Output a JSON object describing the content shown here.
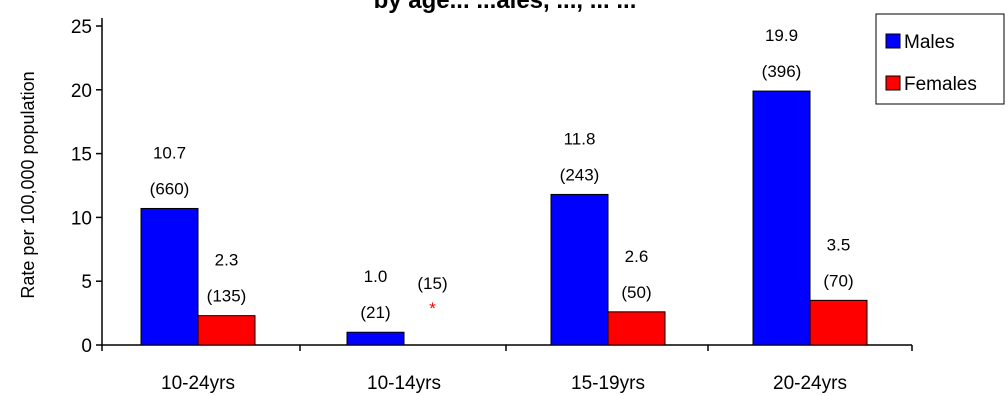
{
  "chart_data": {
    "type": "bar",
    "title": "by age... ...ales, ..., ... ...",
    "ylabel": "Rate per 100,000 population",
    "xlabel": "",
    "ylim": [
      0,
      25
    ],
    "yticks": [
      0,
      5,
      10,
      15,
      20,
      25
    ],
    "categories": [
      "10-24yrs",
      "10-14yrs",
      "15-19yrs",
      "20-24yrs"
    ],
    "series": [
      {
        "name": "Males",
        "color": "#0000ff",
        "values": [
          10.7,
          1.0,
          11.8,
          19.9
        ],
        "rate_labels": [
          "10.7",
          "1.0",
          "11.8",
          "19.9"
        ],
        "count_labels": [
          "(660)",
          "(21)",
          "(243)",
          "(396)"
        ]
      },
      {
        "name": "Females",
        "color": "#ff0000",
        "values": [
          2.3,
          null,
          2.6,
          3.5
        ],
        "rate_labels": [
          "2.3",
          "",
          "2.6",
          "3.5"
        ],
        "count_labels": [
          "(135)",
          "(15)",
          "(50)",
          "(70)"
        ]
      }
    ],
    "footnote_marks": [
      "",
      "*",
      "",
      ""
    ],
    "legend": {
      "position": "top-right",
      "entries": [
        "Males",
        "Females"
      ]
    },
    "grid": false
  }
}
